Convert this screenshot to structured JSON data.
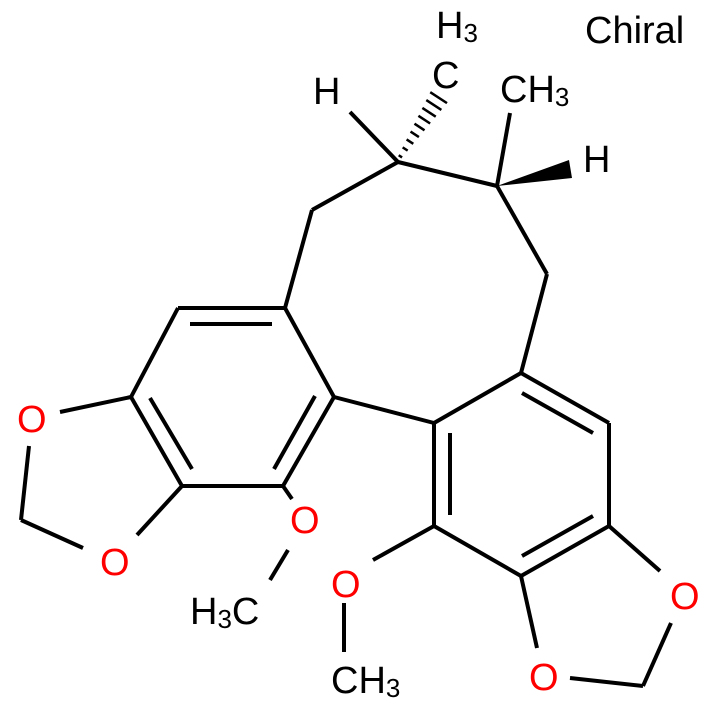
{
  "annotation": "Chiral",
  "atoms": {
    "oxygen": "O",
    "hydrogen": "H",
    "methyl_right": {
      "main": "CH",
      "sub": "3"
    },
    "methyl_top": {
      "h": "H",
      "sub": "3",
      "c": "C"
    },
    "methoxy_left_methyl": {
      "h": "H",
      "sub": "3",
      "c": "C"
    },
    "methoxy_right_methyl": {
      "main": "CH",
      "sub": "3"
    }
  },
  "colors": {
    "bond": "#000000",
    "oxygen": "#ff0000",
    "carbon_hydrogen_label": "#000000"
  }
}
